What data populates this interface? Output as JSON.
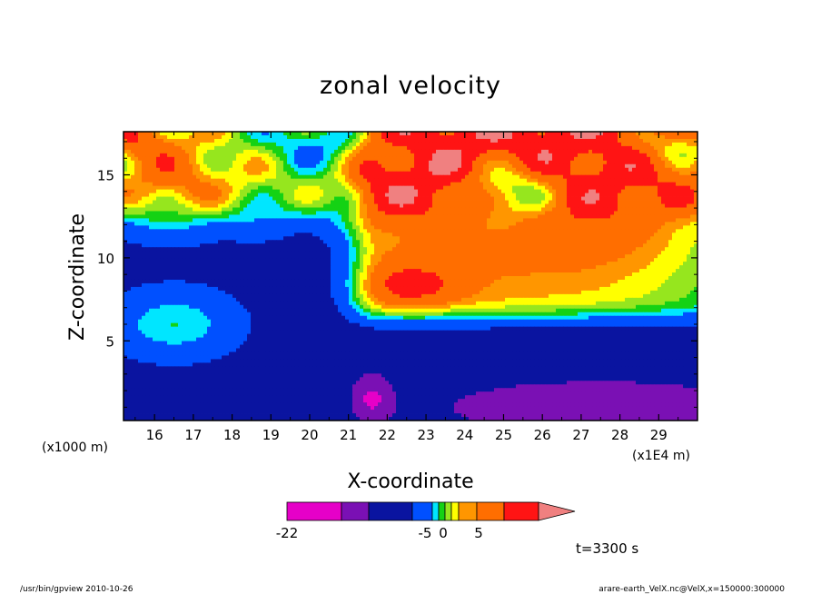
{
  "chart_data": {
    "type": "heatmap",
    "title": "zonal velocity",
    "xlabel": "X-coordinate",
    "ylabel": "Z-coordinate",
    "x_unit": "(x1E4 m)",
    "y_unit": "(x1000 m)",
    "xlim": [
      15.2,
      30.0
    ],
    "ylim": [
      0.2,
      17.6
    ],
    "x_ticks": [
      "16",
      "17",
      "18",
      "19",
      "20",
      "21",
      "22",
      "23",
      "24",
      "25",
      "26",
      "27",
      "28",
      "29"
    ],
    "x_tick_values": [
      16,
      17,
      18,
      19,
      20,
      21,
      22,
      23,
      24,
      25,
      26,
      27,
      28,
      29
    ],
    "y_ticks": [
      "5",
      "10",
      "15"
    ],
    "y_tick_values": [
      5,
      10,
      15
    ],
    "grid": false,
    "colorbar": {
      "levels": [
        {
          "max": -22,
          "color": "#e600c8"
        },
        {
          "max": -15,
          "color": "#7a10b4"
        },
        {
          "max": -9,
          "color": "#0a14a0"
        },
        {
          "max": -5,
          "color": "#0050ff"
        },
        {
          "max": -3,
          "color": "#00e6ff"
        },
        {
          "max": -1,
          "color": "#14d214"
        },
        {
          "max": 1,
          "color": "#96e61e"
        },
        {
          "max": 3,
          "color": "#ffff00"
        },
        {
          "max": 5,
          "color": "#ff9600"
        },
        {
          "max": 9,
          "color": "#ff6e00"
        },
        {
          "max": 13,
          "color": "#ff1414"
        },
        {
          "max": 99,
          "color": "#f08080"
        }
      ],
      "tick_labels": [
        "-22",
        "-5",
        "0",
        "5"
      ],
      "extend": "max"
    },
    "field_description": "zonal wind speed field; strong eastward jet (5-13) from x~21 to 29 at z~7-13; westward flow (-5 to -22) below z~6; alternating bands above z~12"
  },
  "time_label": "t=3300 s",
  "footer": {
    "left": "/usr/bin/gpview   2010-10-26",
    "right": "arare-earth_VelX.nc@VelX,x=150000:300000"
  }
}
